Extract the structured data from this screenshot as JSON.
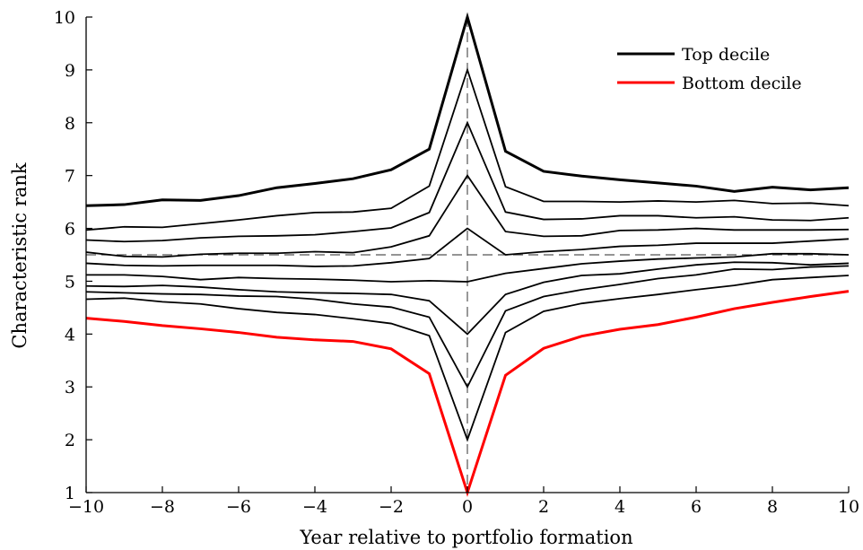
{
  "chart_data": {
    "type": "line",
    "xlabel": "Year relative to portfolio formation",
    "ylabel": "Characteristic rank",
    "xlim": [
      -10,
      10
    ],
    "ylim": [
      1,
      10
    ],
    "x_ticks": [
      -10,
      -8,
      -6,
      -4,
      -2,
      0,
      2,
      4,
      6,
      8,
      10
    ],
    "x_tick_labels": [
      "−10",
      "−8",
      "−6",
      "−4",
      "−2",
      "0",
      "2",
      "4",
      "6",
      "8",
      "10"
    ],
    "y_ticks": [
      1,
      2,
      3,
      4,
      5,
      6,
      7,
      8,
      9,
      10
    ],
    "y_tick_labels": [
      "1",
      "2",
      "3",
      "4",
      "5",
      "6",
      "7",
      "8",
      "9",
      "10"
    ],
    "reference_lines": {
      "horizontal_y": 5.5,
      "vertical_x": 0,
      "style": "dashed",
      "color": "#555555"
    },
    "legend_position": "top-right",
    "legend": [
      {
        "label": "Top decile",
        "color": "#000000"
      },
      {
        "label": "Bottom decile",
        "color": "#ff0000"
      }
    ],
    "x": [
      -10,
      -9,
      -8,
      -7,
      -6,
      -5,
      -4,
      -3,
      -2,
      -1,
      0,
      1,
      2,
      3,
      4,
      5,
      6,
      7,
      8,
      9,
      10
    ],
    "series": [
      {
        "name": "Top decile",
        "color": "#000000",
        "emphasis": true,
        "values": [
          6.43,
          6.45,
          6.54,
          6.53,
          6.62,
          6.77,
          6.85,
          6.94,
          7.11,
          7.5,
          10.0,
          7.46,
          7.08,
          6.99,
          6.92,
          6.86,
          6.8,
          6.7,
          6.78,
          6.73,
          6.77
        ]
      },
      {
        "color": "#000000",
        "values": [
          5.97,
          6.03,
          6.02,
          6.09,
          6.16,
          6.24,
          6.3,
          6.31,
          6.38,
          6.8,
          9.0,
          6.79,
          6.51,
          6.51,
          6.5,
          6.52,
          6.5,
          6.53,
          6.47,
          6.48,
          6.43
        ]
      },
      {
        "color": "#000000",
        "values": [
          5.78,
          5.75,
          5.77,
          5.82,
          5.85,
          5.86,
          5.88,
          5.94,
          6.01,
          6.3,
          8.0,
          6.31,
          6.17,
          6.18,
          6.24,
          6.24,
          6.2,
          6.22,
          6.16,
          6.15,
          6.2
        ]
      },
      {
        "color": "#000000",
        "values": [
          5.55,
          5.47,
          5.46,
          5.51,
          5.53,
          5.53,
          5.56,
          5.54,
          5.65,
          5.86,
          7.0,
          5.94,
          5.85,
          5.86,
          5.96,
          5.97,
          6.0,
          5.97,
          5.97,
          5.97,
          5.98
        ]
      },
      {
        "color": "#000000",
        "values": [
          5.34,
          5.3,
          5.29,
          5.3,
          5.3,
          5.3,
          5.28,
          5.29,
          5.35,
          5.43,
          6.0,
          5.5,
          5.56,
          5.6,
          5.66,
          5.68,
          5.72,
          5.72,
          5.72,
          5.76,
          5.8
        ]
      },
      {
        "color": "#000000",
        "values": [
          5.12,
          5.12,
          5.09,
          5.03,
          5.07,
          5.05,
          5.04,
          5.02,
          4.99,
          5.01,
          4.99,
          5.15,
          5.24,
          5.33,
          5.38,
          5.42,
          5.44,
          5.46,
          5.52,
          5.52,
          5.5
        ]
      },
      {
        "color": "#000000",
        "values": [
          4.91,
          4.9,
          4.92,
          4.89,
          4.84,
          4.8,
          4.78,
          4.77,
          4.75,
          4.63,
          4.0,
          4.75,
          4.98,
          5.11,
          5.14,
          5.23,
          5.31,
          5.36,
          5.35,
          5.31,
          5.34
        ]
      },
      {
        "color": "#000000",
        "values": [
          4.8,
          4.78,
          4.76,
          4.75,
          4.72,
          4.71,
          4.66,
          4.57,
          4.51,
          4.32,
          3.0,
          4.44,
          4.71,
          4.84,
          4.94,
          5.05,
          5.12,
          5.23,
          5.22,
          5.27,
          5.29
        ]
      },
      {
        "color": "#000000",
        "values": [
          4.66,
          4.68,
          4.61,
          4.57,
          4.48,
          4.41,
          4.37,
          4.29,
          4.2,
          3.97,
          2.0,
          4.03,
          4.43,
          4.58,
          4.67,
          4.75,
          4.84,
          4.92,
          5.03,
          5.07,
          5.11
        ]
      },
      {
        "name": "Bottom decile",
        "color": "#ff0000",
        "emphasis": true,
        "values": [
          4.3,
          4.24,
          4.16,
          4.1,
          4.03,
          3.94,
          3.89,
          3.86,
          3.72,
          3.25,
          1.0,
          3.22,
          3.73,
          3.96,
          4.09,
          4.18,
          4.32,
          4.48,
          4.6,
          4.71,
          4.81
        ]
      }
    ]
  }
}
